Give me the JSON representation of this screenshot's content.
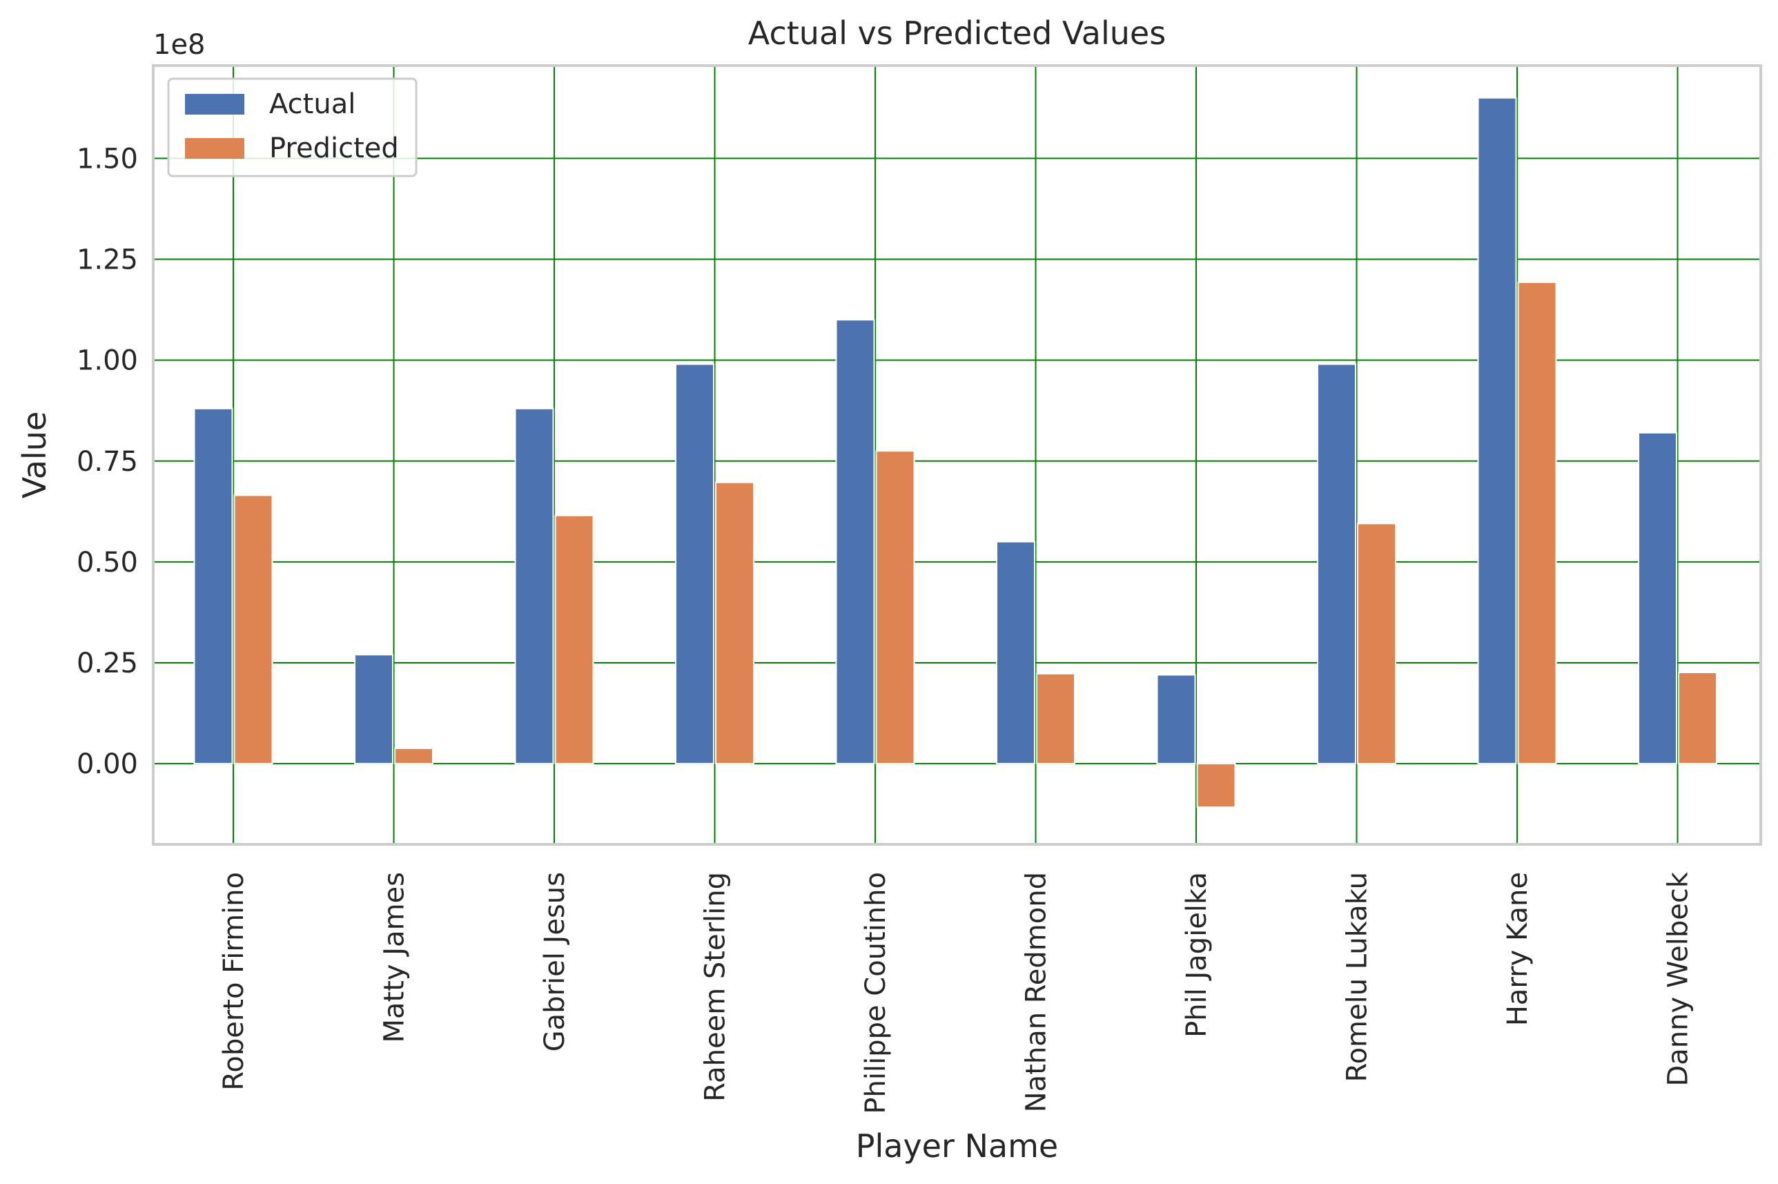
{
  "chart_data": {
    "type": "bar",
    "title": "Actual vs Predicted Values",
    "xlabel": "Player Name",
    "ylabel": "Value",
    "y_offset_label": "1e8",
    "y_scale": 100000000,
    "categories": [
      "Roberto Firmino",
      "Matty James",
      "Gabriel Jesus",
      "Raheem Sterling",
      "Philippe Coutinho",
      "Nathan Redmond",
      "Phil Jagielka",
      "Romelu Lukaku",
      "Harry Kane",
      "Danny Welbeck"
    ],
    "series": [
      {
        "name": "Actual",
        "color": "#4c72b0",
        "values": [
          88000000,
          27000000,
          88000000,
          99000000,
          110000000,
          55000000,
          22000000,
          99000000,
          165000000,
          82000000
        ]
      },
      {
        "name": "Predicted",
        "color": "#dd8452",
        "values": [
          66500000,
          3800000,
          61500000,
          69700000,
          77500000,
          22300000,
          -10800000,
          59500000,
          119300000,
          22600000
        ]
      }
    ],
    "ylim": [
      -20000000,
      173000000
    ],
    "y_ticks": [
      0,
      25000000,
      50000000,
      75000000,
      100000000,
      125000000,
      150000000
    ],
    "y_tick_labels": [
      "0.00",
      "0.25",
      "0.50",
      "0.75",
      "1.00",
      "1.25",
      "1.50"
    ],
    "grid": true,
    "grid_color": "#008000",
    "legend_position": "upper-left"
  }
}
